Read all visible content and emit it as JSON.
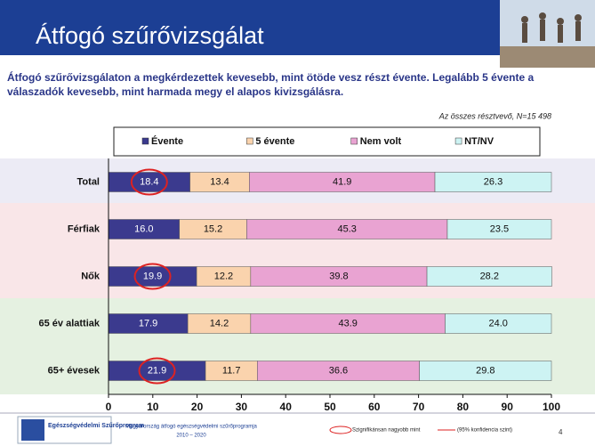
{
  "chart_data": {
    "type": "stacked-bar-horizontal",
    "title": "Átfogó szűrővizsgálat",
    "subtitle": [
      "Átfogó szűrővizsgálaton a megkérdezettek kevesebb, mint ötöde vesz részt évente. Legalább 5 évente a",
      "válaszadók kevesebb, mint harmada megy el alapos kivizsgálásra."
    ],
    "note": "Az összes résztvevő, N=15 498",
    "categories": [
      "Total",
      "Férfiak",
      "Nők",
      "65 év alattiak",
      "65+ évesek"
    ],
    "series": [
      {
        "name": "Évente",
        "color": "#3b3a8e",
        "values": [
          18.4,
          16.0,
          19.9,
          17.9,
          21.9
        ],
        "value_labels": [
          "18.4",
          "16.0",
          "19.9",
          "17.9",
          "21.9"
        ],
        "significant": [
          true,
          false,
          true,
          false,
          true
        ]
      },
      {
        "name": "5 évente",
        "color": "#fad3ad",
        "values": [
          13.4,
          15.2,
          12.2,
          14.2,
          11.7
        ],
        "value_labels": [
          "13.4",
          "15.2",
          "12.2",
          "14.2",
          "11.7"
        ]
      },
      {
        "name": "Nem volt",
        "color": "#e9a3d2",
        "values": [
          41.9,
          45.3,
          39.8,
          43.9,
          36.6
        ],
        "value_labels": [
          "41.9",
          "45.3",
          "39.8",
          "43.9",
          "36.6"
        ]
      },
      {
        "name": "NT/NV",
        "color": "#cdf3f3",
        "values": [
          26.3,
          23.5,
          28.2,
          24.0,
          29.8
        ],
        "value_labels": [
          "26.3",
          "23.5",
          "28.2",
          "24.0",
          "29.8"
        ]
      }
    ],
    "xlim": [
      0,
      100
    ],
    "xticks": [
      0,
      10,
      20,
      30,
      40,
      50,
      60,
      70,
      80,
      90,
      100
    ],
    "highlight_legend": "Szignifikánsan nagyobb mint",
    "confidence_legend": "(95% konfidencia szint)"
  },
  "footer": {
    "logo": "Egészségvédelmi Szűrőprogram",
    "program": "Magyarország átfogó egészségvédelmi szűrőprogramja",
    "years": "2010 – 2020",
    "page": "4"
  }
}
